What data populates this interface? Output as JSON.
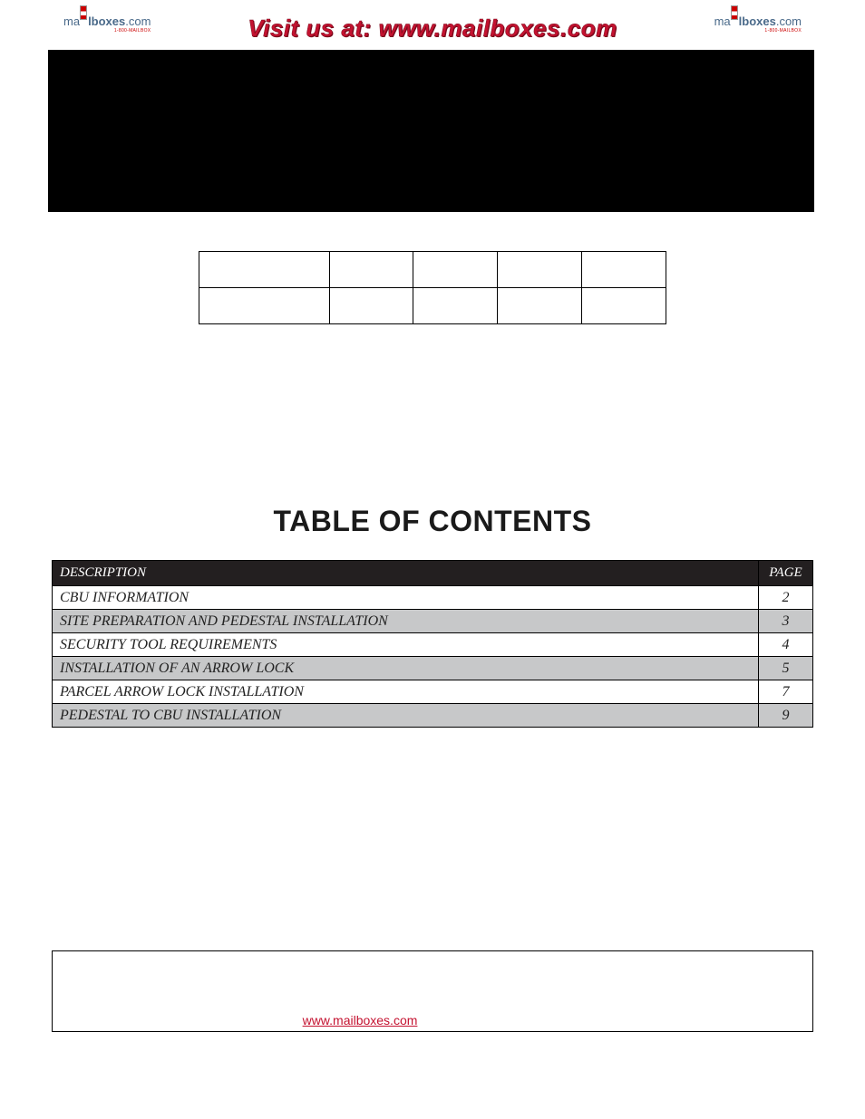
{
  "header": {
    "banner": "Visit us at: www.mailboxes.com",
    "logo_main_a": "ma",
    "logo_main_b": "lboxes",
    "logo_main_c": ".com",
    "logo_sub": "1-800-MAILBOX"
  },
  "toc": {
    "title": "TABLE OF CONTENTS",
    "header_desc": "DESCRIPTION",
    "header_page": "PAGE",
    "rows": [
      {
        "desc": "CBU INFORMATION",
        "page": "2",
        "shade": false
      },
      {
        "desc": "SITE PREPARATION AND PEDESTAL INSTALLATION",
        "page": "3",
        "shade": true
      },
      {
        "desc": "SECURITY TOOL REQUIREMENTS",
        "page": "4",
        "shade": false
      },
      {
        "desc": "INSTALLATION OF AN ARROW LOCK",
        "page": "5",
        "shade": true
      },
      {
        "desc": "PARCEL ARROW LOCK INSTALLATION",
        "page": "7",
        "shade": false
      },
      {
        "desc": "PEDESTAL TO CBU INSTALLATION",
        "page": "9",
        "shade": true
      }
    ]
  },
  "footer": {
    "link_text": "www.mailboxes.com",
    "link_href": "http://www.mailboxes.com"
  },
  "colors": {
    "accent_red": "#c41230",
    "dark_row": "#231f20",
    "shade_row": "#c7c8c9"
  }
}
